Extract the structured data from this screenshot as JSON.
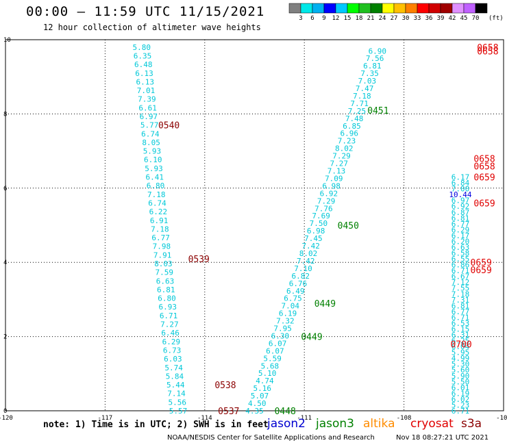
{
  "title": "00:00 – 11:59 UTC 11/15/2021",
  "subtitle": "12 hour collection of altimeter wave heights",
  "note": "note: 1) Time is in UTC; 2) SWH is in feet",
  "footer": "NOAA/NESDIS Center for Satellite Applications and Research",
  "footer_timestamp": "Nov 18 08:27:21 UTC 2021",
  "satellites": [
    {
      "name": "jason2",
      "color": "#0000d0"
    },
    {
      "name": "jason3",
      "color": "#008000"
    },
    {
      "name": "altika",
      "color": "#ff8c00"
    },
    {
      "name": "cryosat",
      "color": "#e00000"
    },
    {
      "name": "s3a",
      "color": "#8b0000"
    }
  ],
  "colorbar": {
    "unit": "(ft)",
    "ticks": [
      "3",
      "6",
      "9",
      "12",
      "15",
      "18",
      "21",
      "24",
      "27",
      "30",
      "33",
      "36",
      "39",
      "42",
      "45",
      "70"
    ],
    "colors": [
      "#808080",
      "#00e8e8",
      "#00b0f0",
      "#0000ff",
      "#00c8ff",
      "#00ff00",
      "#20c020",
      "#008000",
      "#ffff00",
      "#ffc000",
      "#ff8000",
      "#ff0000",
      "#d00000",
      "#a00000",
      "#e090ff",
      "#c060ff",
      "#000000"
    ]
  },
  "chart_data": {
    "type": "scatter",
    "xlim": [
      -120,
      -105
    ],
    "ylim": [
      0,
      10
    ],
    "xticks": [
      "-120",
      "-117",
      "-114",
      "-111",
      "-108",
      "-105"
    ],
    "yticks": [
      "0",
      "2",
      "4",
      "6",
      "8",
      "10"
    ],
    "point_colors": {
      "cyan": "#00c8d8",
      "light": "#20a8f0",
      "blue": "#0000e0"
    },
    "tracks": [
      {
        "name": "track-1",
        "x_start": -115.9,
        "x_end": -114.8,
        "y_start": 9.8,
        "y_end": 0.0,
        "color": "#00c8d8",
        "values": [
          "5.80",
          "6.35",
          "6.48",
          "6.13",
          "6.13",
          "7.01",
          "7.39",
          "6.61",
          "6.97",
          "5.77",
          "6.74",
          "8.05",
          "5.93",
          "6.10",
          "5.93",
          "6.41",
          "6.80",
          "7.18",
          "6.74",
          "6.22",
          "6.91",
          "7.18",
          "6.77",
          "7.98",
          "7.91",
          "8.03",
          "7.59",
          "6.63",
          "6.81",
          "6.80",
          "6.93",
          "6.71",
          "7.27",
          "6.46",
          "6.29",
          "6.73",
          "6.03",
          "5.74",
          "5.84",
          "5.44",
          "7.14",
          "5.56",
          "5.57"
        ]
      },
      {
        "name": "track-2",
        "x_start": -112.5,
        "x_end": -108.8,
        "y_start": 0.0,
        "y_end": 9.7,
        "color": "#00c8d8",
        "values": [
          "4.35",
          "4.50",
          "5.07",
          "5.16",
          "4.74",
          "5.10",
          "5.68",
          "5.59",
          "6.07",
          "6.07",
          "6.30",
          "7.95",
          "7.32",
          "6.19",
          "7.04",
          "6.75",
          "6.49",
          "6.76",
          "6.82",
          "7.10",
          "7.42",
          "8.02",
          "7.42",
          "7.45",
          "6.98",
          "7.50",
          "7.69",
          "7.76",
          "7.29",
          "6.92",
          "6.98",
          "7.09",
          "7.13",
          "7.27",
          "7.29",
          "8.02",
          "7.23",
          "6.96",
          "6.85",
          "7.48",
          "7.25",
          "7.71",
          "7.18",
          "7.47",
          "7.03",
          "7.35",
          "6.81",
          "7.56",
          "6.90"
        ]
      },
      {
        "name": "track-3",
        "x_start": -106.3,
        "x_end": -106.3,
        "y_start": 0.0,
        "y_end": 6.3,
        "color": "#00c8d8",
        "values": [
          "6.71",
          "5.23",
          "6.02",
          "6.19",
          "6.01",
          "5.50",
          "5.90",
          "5.60",
          "5.30",
          "4.99",
          "5.95",
          "6.04",
          "6.25",
          "6.31",
          "6.15",
          "6.53",
          "6.71",
          "6.77",
          "6.81",
          "7.31",
          "7.18",
          "7.55",
          "7.12",
          "6.67",
          "6.71",
          "6.86",
          "6.55",
          "6.58",
          "6.63",
          "6.20",
          "6.17",
          "6.29",
          "6.77",
          "6.81",
          "6.87",
          "6.92",
          "6.97",
          "10.44",
          "7.00",
          "6.84",
          "6.17"
        ]
      }
    ],
    "labels": [
      {
        "text": "0537",
        "x": -113.6,
        "y": 0.0,
        "color": "#8b0000"
      },
      {
        "text": "0538",
        "x": -113.7,
        "y": 0.7,
        "color": "#8b0000"
      },
      {
        "text": "0539",
        "x": -114.5,
        "y": 4.1,
        "color": "#8b0000"
      },
      {
        "text": "0540",
        "x": -115.4,
        "y": 7.7,
        "color": "#8b0000"
      },
      {
        "text": "0448",
        "x": -111.9,
        "y": 0.0,
        "color": "#008000"
      },
      {
        "text": "0449",
        "x": -111.1,
        "y": 2.0,
        "color": "#008000"
      },
      {
        "text": "0449",
        "x": -110.7,
        "y": 2.9,
        "color": "#008000"
      },
      {
        "text": "0450",
        "x": -110.0,
        "y": 5.0,
        "color": "#008000"
      },
      {
        "text": "0451",
        "x": -109.1,
        "y": 8.1,
        "color": "#008000"
      },
      {
        "text": "0700",
        "x": -106.6,
        "y": 1.8,
        "color": "#e00000"
      },
      {
        "text": "0659",
        "x": -106.0,
        "y": 3.8,
        "color": "#e00000"
      },
      {
        "text": "0659",
        "x": -106.0,
        "y": 4.0,
        "color": "#e00000"
      },
      {
        "text": "0659",
        "x": -105.9,
        "y": 5.6,
        "color": "#e00000"
      },
      {
        "text": "0659",
        "x": -105.9,
        "y": 6.3,
        "color": "#e00000"
      },
      {
        "text": "0658",
        "x": -105.9,
        "y": 6.6,
        "color": "#e00000"
      },
      {
        "text": "0658",
        "x": -105.9,
        "y": 6.8,
        "color": "#e00000"
      },
      {
        "text": "0658",
        "x": -105.8,
        "y": 9.7,
        "color": "#e00000"
      },
      {
        "text": "0658",
        "x": -105.8,
        "y": 9.8,
        "color": "#e00000"
      }
    ]
  }
}
